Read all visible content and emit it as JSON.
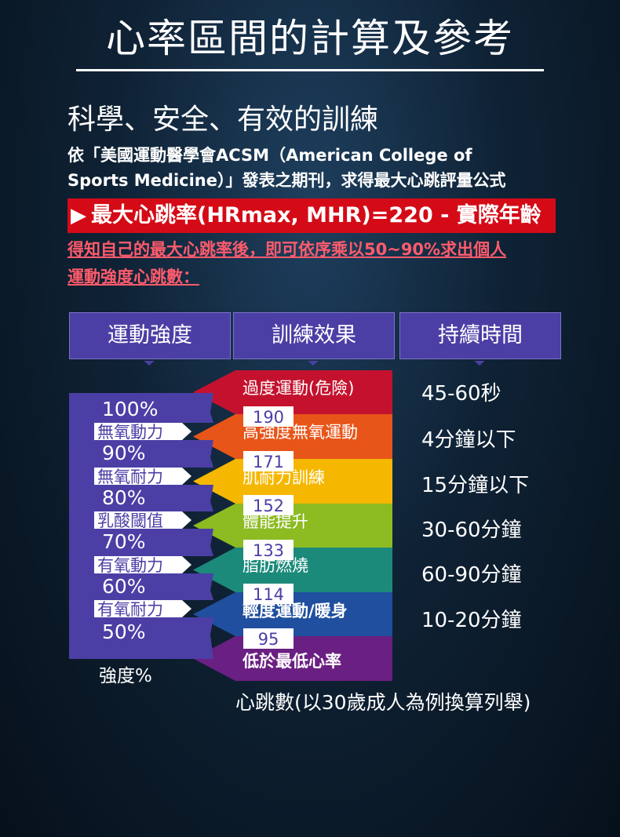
{
  "title": "心率區間的計算及參考",
  "subtitle": "科學、安全、有效的訓練",
  "intro": {
    "line1": "依「美國運動醫學會ACSM（American College of",
    "line2": "Sports Medicine）」發表之期刊，求得最大心跳評量公式"
  },
  "formula": {
    "arrow": "▶",
    "text": "最大心跳率(HRmax, MHR)=220 - 實際年齡"
  },
  "note": {
    "line1": "得知自己的最大心跳率後，即可依序乘以50~90%求出個人",
    "line2": "運動強度心跳數："
  },
  "headers": {
    "intensity": "運動強度",
    "effect": "訓練效果",
    "duration": "持續時間"
  },
  "percentages": [
    "100%",
    "90%",
    "80%",
    "70%",
    "60%",
    "50%"
  ],
  "zone_labels": [
    "無氧動力",
    "無氧耐力",
    "乳酸閾值",
    "有氧動力",
    "有氧耐力"
  ],
  "heart_rates": [
    "190",
    "171",
    "152",
    "133",
    "114",
    "95"
  ],
  "effects": [
    {
      "label": "過度運動(危險)",
      "color": "#c4122e"
    },
    {
      "label": "高強度無氧運動",
      "color": "#e85519"
    },
    {
      "label": "肌耐力訓練",
      "color": "#f5b700"
    },
    {
      "label": "體能提升",
      "color": "#8cbb22"
    },
    {
      "label": "脂肪燃燒",
      "color": "#1c8a7a"
    },
    {
      "label": "輕度運動/暖身",
      "color": "#1f4f9e"
    },
    {
      "label": "低於最低心率",
      "color": "#6a1f82"
    }
  ],
  "durations": [
    "45-60秒",
    "4分鐘以下",
    "15分鐘以下",
    "30-60分鐘",
    "60-90分鐘",
    "10-20分鐘"
  ],
  "footer": {
    "left": "強度%",
    "right": "心跳數(以30歲成人為例換算列舉)"
  },
  "colors": {
    "purple": "#4b3fa5",
    "formula_bar": "#d40b17",
    "note_text": "#ff5b6c"
  }
}
